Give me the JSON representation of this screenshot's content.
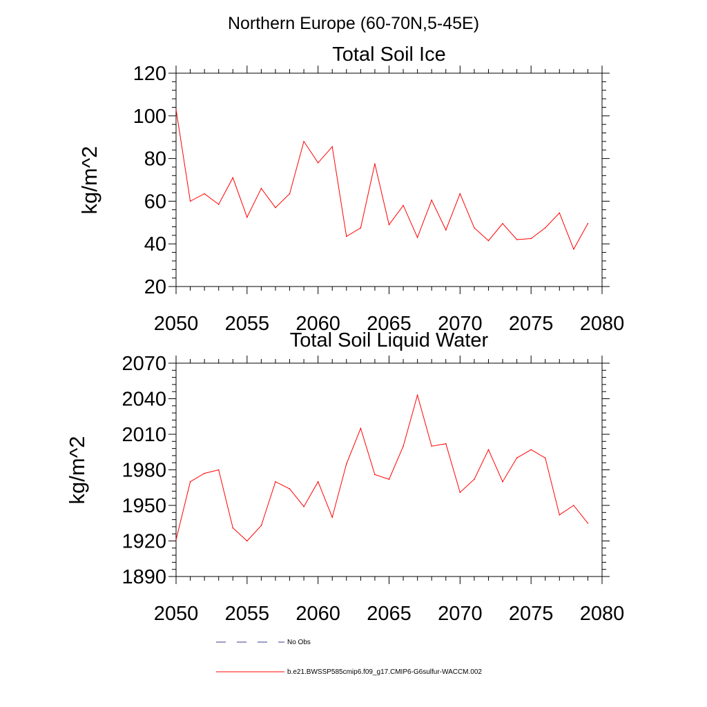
{
  "figure": {
    "main_title": "Northern Europe (60-70N,5-45E)",
    "line_color": "#ff0000",
    "obs_color": "#3a3a8c"
  },
  "legend": {
    "obs_label": "No Obs",
    "model_label": "b.e21.BWSSP585cmip6.f09_g17.CMIP6-G6sulfur-WACCM.002"
  },
  "chart_data": [
    {
      "type": "line",
      "title": "Total Soil Ice",
      "ylabel": "kg/m^2",
      "xlabel": "",
      "xlim": [
        2050,
        2080
      ],
      "ylim": [
        20,
        120
      ],
      "x_ticks": [
        2050,
        2055,
        2060,
        2065,
        2070,
        2075,
        2080
      ],
      "y_ticks": [
        20,
        40,
        60,
        80,
        100,
        120
      ],
      "x_minor_step": 1,
      "y_minor_step": 4,
      "series": [
        {
          "x": [
            2050,
            2051,
            2052,
            2053,
            2054,
            2055,
            2056,
            2057,
            2058,
            2059,
            2060,
            2061,
            2062,
            2063,
            2064,
            2065,
            2066,
            2067,
            2068,
            2069,
            2070,
            2071,
            2072,
            2073,
            2074,
            2075,
            2076,
            2077,
            2078,
            2079
          ],
          "values": [
            103,
            60,
            63.5,
            58.5,
            71,
            52.5,
            66,
            57,
            63.5,
            88,
            78,
            85.5,
            43.5,
            47.5,
            77.5,
            49,
            58,
            43,
            60.5,
            46.5,
            63.5,
            47.5,
            41.5,
            49.5,
            42,
            42.5,
            47.5,
            54.5,
            37.5,
            49.5
          ]
        }
      ]
    },
    {
      "type": "line",
      "title": "Total Soil Liquid Water",
      "ylabel": "kg/m^2",
      "xlabel": "",
      "xlim": [
        2050,
        2080
      ],
      "ylim": [
        1890,
        2070
      ],
      "x_ticks": [
        2050,
        2055,
        2060,
        2065,
        2070,
        2075,
        2080
      ],
      "y_ticks": [
        1890,
        1920,
        1950,
        1980,
        2010,
        2040,
        2070
      ],
      "x_minor_step": 1,
      "y_minor_step": 6,
      "series": [
        {
          "x": [
            2050,
            2051,
            2052,
            2053,
            2054,
            2055,
            2056,
            2057,
            2058,
            2059,
            2060,
            2061,
            2062,
            2063,
            2064,
            2065,
            2066,
            2067,
            2068,
            2069,
            2070,
            2071,
            2072,
            2073,
            2074,
            2075,
            2076,
            2077,
            2078,
            2079
          ],
          "values": [
            1921,
            1970,
            1977,
            1980,
            1931,
            1920,
            1933,
            1970,
            1964,
            1949,
            1970,
            1940,
            1985,
            2015,
            1976,
            1972,
            2000,
            2043,
            2000,
            2002,
            1961,
            1972,
            1997,
            1970,
            1990,
            1997,
            1990,
            1942,
            1950,
            1935
          ]
        }
      ]
    }
  ]
}
